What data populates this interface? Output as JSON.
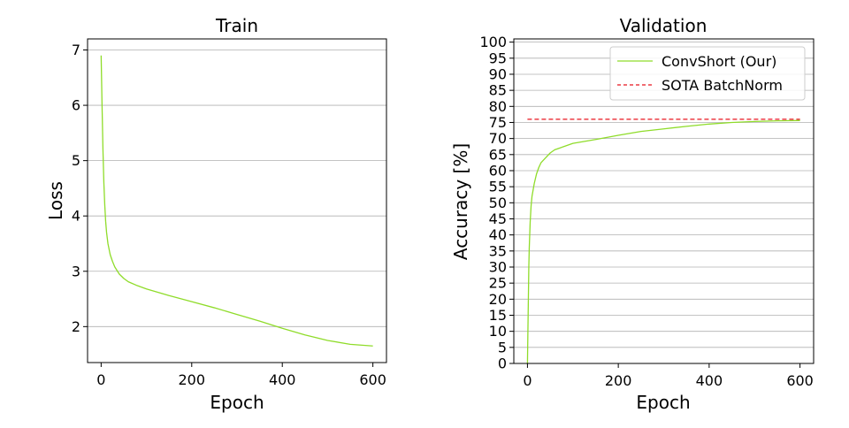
{
  "figure": {
    "background": "#ffffff"
  },
  "chart_data": [
    {
      "type": "line",
      "title": "Train",
      "xlabel": "Epoch",
      "ylabel": "Loss",
      "xlim": [
        -30,
        630
      ],
      "ylim": [
        1.35,
        7.2
      ],
      "xticks": [
        0,
        200,
        400,
        600
      ],
      "yticks": [
        2,
        3,
        4,
        5,
        6,
        7
      ],
      "grid": "y",
      "series": [
        {
          "color": "#8fdc2a",
          "x": [
            0,
            2,
            4,
            6,
            8,
            10,
            12,
            15,
            20,
            25,
            30,
            40,
            50,
            60,
            80,
            100,
            150,
            200,
            250,
            300,
            350,
            400,
            450,
            500,
            550,
            600
          ],
          "y": [
            6.9,
            6.0,
            5.2,
            4.6,
            4.2,
            3.9,
            3.7,
            3.5,
            3.3,
            3.18,
            3.08,
            2.95,
            2.87,
            2.81,
            2.74,
            2.68,
            2.56,
            2.45,
            2.34,
            2.22,
            2.1,
            1.97,
            1.85,
            1.75,
            1.68,
            1.65
          ]
        }
      ]
    },
    {
      "type": "line",
      "title": "Validation",
      "xlabel": "Epoch",
      "ylabel": "Accuracy [%]",
      "xlim": [
        -30,
        630
      ],
      "ylim": [
        0,
        101
      ],
      "xticks": [
        0,
        200,
        400,
        600
      ],
      "yticks": [
        0,
        5,
        10,
        15,
        20,
        25,
        30,
        35,
        40,
        45,
        50,
        55,
        60,
        65,
        70,
        75,
        80,
        85,
        90,
        95,
        100
      ],
      "grid": "y",
      "legend_position": "top-right",
      "series": [
        {
          "name": "ConvShort (Our)",
          "color": "#8fdc2a",
          "style": "solid",
          "x": [
            0,
            1,
            2,
            3,
            4,
            6,
            8,
            10,
            15,
            20,
            25,
            30,
            40,
            50,
            60,
            80,
            100,
            150,
            200,
            250,
            300,
            350,
            400,
            450,
            500,
            550,
            600
          ],
          "y": [
            0,
            10,
            20,
            30,
            36,
            44,
            49,
            52,
            56,
            59,
            61,
            62.5,
            64,
            65.5,
            66.5,
            67.5,
            68.5,
            69.7,
            71,
            72.2,
            73,
            73.8,
            74.5,
            75,
            75.3,
            75.5,
            75.6
          ]
        },
        {
          "name": "SOTA BatchNorm",
          "color": "#e8141e",
          "style": "dashed",
          "x": [
            0,
            600
          ],
          "y": [
            76,
            76
          ]
        }
      ]
    }
  ]
}
